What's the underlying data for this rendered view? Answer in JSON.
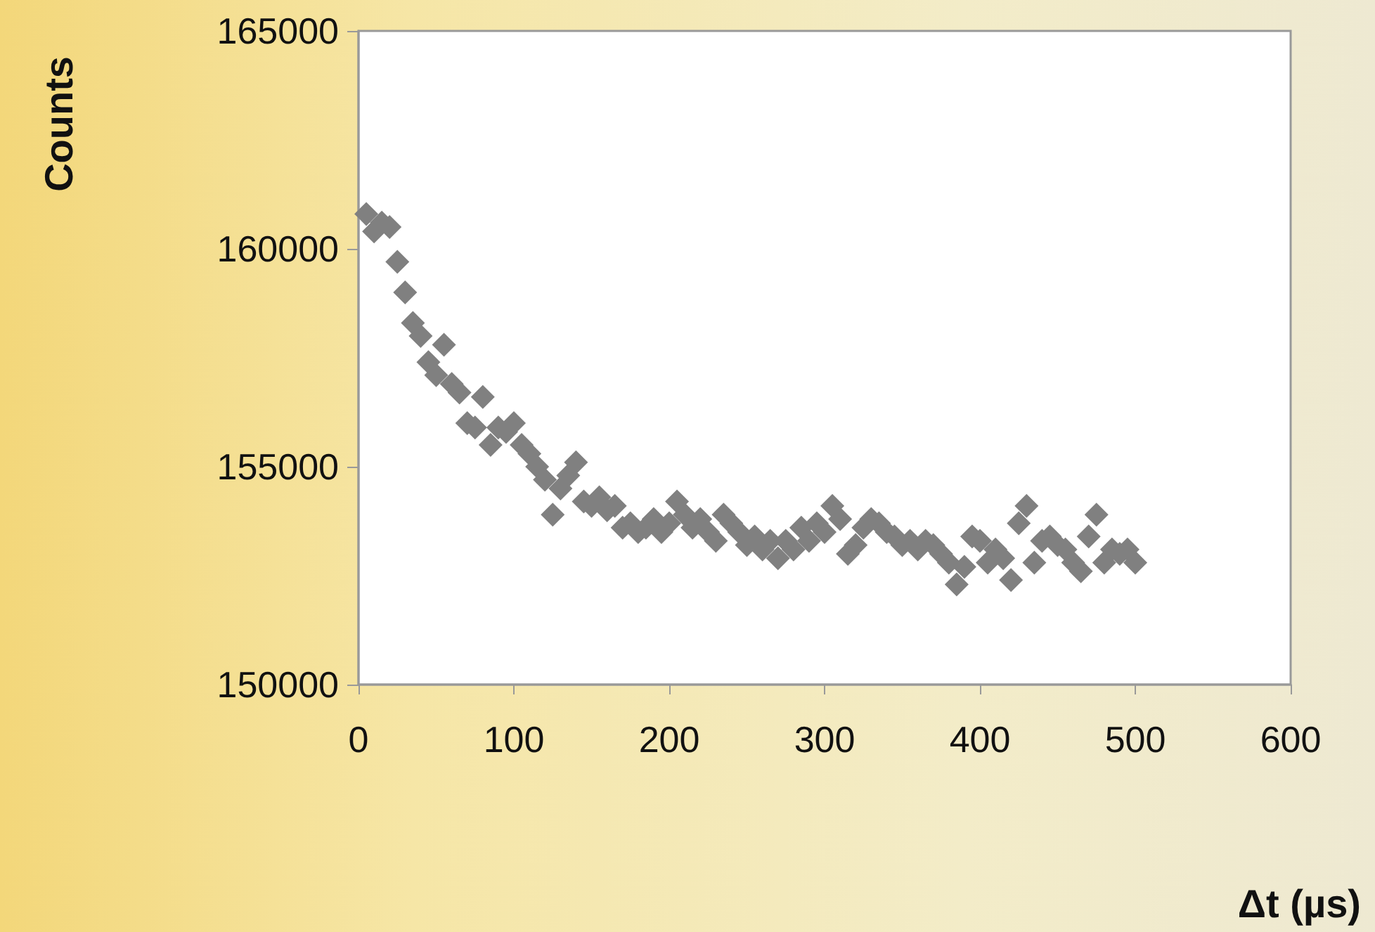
{
  "chart_data": {
    "type": "scatter",
    "xlabel": "Δt (µs)",
    "ylabel": "Counts",
    "xlim": [
      0,
      600
    ],
    "xticks": [
      0,
      100,
      200,
      300,
      400,
      500,
      600
    ],
    "ylim": [
      150000,
      165000
    ],
    "yticks": [
      150000,
      155000,
      160000,
      165000
    ],
    "grid": false,
    "marker": "diamond",
    "series": [
      {
        "color": "#808080",
        "x": [
          5,
          10,
          15,
          20,
          25,
          30,
          35,
          40,
          45,
          50,
          55,
          60,
          65,
          70,
          75,
          80,
          85,
          90,
          95,
          100,
          105,
          110,
          115,
          120,
          125,
          130,
          135,
          140,
          145,
          150,
          155,
          160,
          165,
          170,
          175,
          180,
          185,
          190,
          195,
          200,
          205,
          210,
          215,
          220,
          225,
          230,
          235,
          240,
          245,
          250,
          255,
          260,
          265,
          270,
          275,
          280,
          285,
          290,
          295,
          300,
          305,
          310,
          315,
          320,
          325,
          330,
          335,
          340,
          345,
          350,
          355,
          360,
          365,
          370,
          375,
          380,
          385,
          390,
          395,
          400,
          405,
          410,
          415,
          420,
          425,
          430,
          435,
          440,
          445,
          450,
          455,
          460,
          465,
          470,
          475,
          480,
          485,
          490,
          495,
          500
        ],
        "values": [
          160800,
          160400,
          160600,
          160500,
          159700,
          159000,
          158300,
          158000,
          157400,
          157100,
          157800,
          156900,
          156700,
          156000,
          155900,
          156600,
          155500,
          155900,
          155800,
          156000,
          155500,
          155300,
          155000,
          154700,
          153900,
          154500,
          154800,
          155100,
          154200,
          154100,
          154300,
          154000,
          154100,
          153600,
          153700,
          153500,
          153600,
          153800,
          153500,
          153700,
          154200,
          153900,
          153600,
          153800,
          153500,
          153300,
          153900,
          153700,
          153500,
          153200,
          153400,
          153100,
          153300,
          152900,
          153300,
          153100,
          153600,
          153300,
          153700,
          153500,
          154100,
          153800,
          153000,
          153200,
          153600,
          153800,
          153700,
          153500,
          153400,
          153200,
          153300,
          153100,
          153300,
          153200,
          153000,
          152800,
          152300,
          152700,
          153400,
          153300,
          152800,
          153100,
          152900,
          152400,
          153700,
          154100,
          152800,
          153300,
          153400,
          153200,
          153100,
          152800,
          152600,
          153400,
          153900,
          152800,
          153100,
          153000,
          153100,
          152800
        ]
      }
    ]
  }
}
